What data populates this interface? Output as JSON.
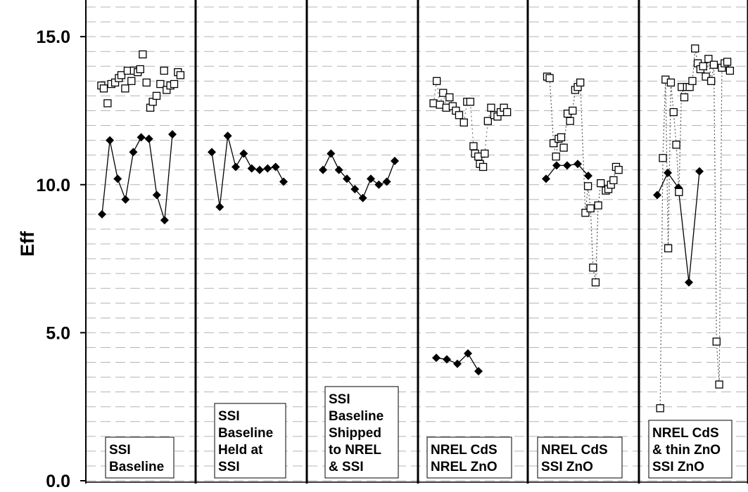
{
  "chart_data": {
    "type": "scatter",
    "ylabel": "Eff",
    "ylim": [
      0,
      16
    ],
    "yticks": [
      {
        "value": 0,
        "label": "0.0"
      },
      {
        "value": 5,
        "label": "5.0"
      },
      {
        "value": 10,
        "label": "10.0"
      },
      {
        "value": 15,
        "label": "15.0"
      }
    ],
    "minor_gridlines_step": 0.5,
    "grid": true,
    "colors": {
      "line": "#000000",
      "grid": "#b4b4b4",
      "open_marker": "#000000",
      "filled_marker": "#000000",
      "dotted_connector": "#555555"
    },
    "panels": [
      {
        "label_lines": [
          "SSI",
          "Baseline"
        ],
        "filled": [
          [
            1,
            9.0
          ],
          [
            2,
            11.5
          ],
          [
            3,
            10.2
          ],
          [
            4,
            9.5
          ],
          [
            5,
            11.1
          ],
          [
            6,
            11.6
          ],
          [
            7,
            11.55
          ],
          [
            8,
            9.65
          ],
          [
            9,
            8.8
          ],
          [
            10,
            11.7
          ]
        ],
        "open": [
          [
            0.5,
            13.35
          ],
          [
            0.7,
            13.25
          ],
          [
            1.0,
            12.75
          ],
          [
            1.3,
            13.4
          ],
          [
            1.6,
            13.45
          ],
          [
            1.9,
            13.6
          ],
          [
            2.1,
            13.7
          ],
          [
            2.4,
            13.25
          ],
          [
            2.6,
            13.85
          ],
          [
            2.9,
            13.5
          ],
          [
            3.1,
            13.85
          ],
          [
            3.4,
            13.8
          ],
          [
            3.6,
            13.9
          ],
          [
            3.8,
            14.4
          ],
          [
            4.1,
            13.45
          ],
          [
            4.4,
            12.6
          ],
          [
            4.6,
            12.8
          ],
          [
            4.9,
            13.0
          ],
          [
            5.2,
            13.4
          ],
          [
            5.5,
            13.85
          ],
          [
            5.7,
            13.2
          ],
          [
            6.0,
            13.35
          ],
          [
            6.3,
            13.4
          ],
          [
            6.6,
            13.8
          ],
          [
            6.8,
            13.7
          ]
        ],
        "open_x_range": [
          0,
          7
        ]
      },
      {
        "label_lines": [
          "SSI",
          "Baseline",
          "Held at",
          "SSI"
        ],
        "filled": [
          [
            1,
            11.1
          ],
          [
            2,
            9.25
          ],
          [
            3,
            11.65
          ],
          [
            4,
            10.6
          ],
          [
            5,
            11.05
          ],
          [
            6,
            10.55
          ],
          [
            7,
            10.5
          ],
          [
            8,
            10.55
          ],
          [
            9,
            10.6
          ],
          [
            10,
            10.1
          ]
        ],
        "open": []
      },
      {
        "label_lines": [
          "SSI",
          "Baseline",
          "Shipped",
          "to NREL",
          "& SSI"
        ],
        "filled": [
          [
            1,
            10.5
          ],
          [
            2,
            11.05
          ],
          [
            3,
            10.5
          ],
          [
            4,
            10.2
          ],
          [
            5,
            9.85
          ],
          [
            6,
            9.55
          ],
          [
            7,
            10.2
          ],
          [
            8,
            10.0
          ],
          [
            9,
            10.1
          ],
          [
            10,
            10.8
          ]
        ],
        "open": []
      },
      {
        "label_lines": [
          "NREL CdS",
          "NREL ZnO"
        ],
        "filled": [
          [
            1,
            4.15
          ],
          [
            2,
            4.1
          ],
          [
            3,
            3.95
          ],
          [
            4,
            4.3
          ],
          [
            5,
            3.7
          ]
        ],
        "open": [
          [
            0.4,
            12.75
          ],
          [
            0.6,
            13.5
          ],
          [
            0.8,
            12.7
          ],
          [
            1.0,
            13.1
          ],
          [
            1.2,
            12.6
          ],
          [
            1.4,
            12.95
          ],
          [
            1.6,
            12.65
          ],
          [
            1.8,
            12.5
          ],
          [
            2.0,
            12.35
          ],
          [
            2.3,
            12.1
          ],
          [
            2.5,
            12.8
          ],
          [
            2.7,
            12.8
          ],
          [
            2.9,
            11.3
          ],
          [
            3.0,
            11.05
          ],
          [
            3.2,
            10.95
          ],
          [
            3.3,
            10.7
          ],
          [
            3.5,
            10.6
          ],
          [
            3.6,
            11.05
          ],
          [
            3.8,
            12.15
          ],
          [
            4.0,
            12.6
          ],
          [
            4.2,
            12.35
          ],
          [
            4.4,
            12.3
          ],
          [
            4.6,
            12.45
          ],
          [
            4.8,
            12.6
          ],
          [
            5.0,
            12.45
          ]
        ],
        "open_x_range": [
          0,
          5.5
        ]
      },
      {
        "label_lines": [
          "NREL CdS",
          "SSI ZnO"
        ],
        "filled": [
          [
            1,
            10.2
          ],
          [
            2,
            10.65
          ],
          [
            3,
            10.65
          ],
          [
            4,
            10.7
          ],
          [
            5,
            10.3
          ]
        ],
        "open": [
          [
            0.8,
            13.65
          ],
          [
            1.0,
            13.6
          ],
          [
            1.3,
            11.4
          ],
          [
            1.5,
            10.95
          ],
          [
            1.7,
            11.55
          ],
          [
            1.9,
            11.6
          ],
          [
            2.1,
            11.25
          ],
          [
            2.4,
            12.4
          ],
          [
            2.6,
            12.15
          ],
          [
            2.8,
            12.5
          ],
          [
            3.0,
            13.2
          ],
          [
            3.2,
            13.3
          ],
          [
            3.4,
            13.45
          ],
          [
            3.8,
            9.05
          ],
          [
            4.0,
            9.95
          ],
          [
            4.2,
            9.2
          ],
          [
            4.4,
            7.2
          ],
          [
            4.6,
            6.7
          ],
          [
            4.8,
            9.3
          ],
          [
            5.0,
            10.05
          ],
          [
            5.4,
            9.8
          ],
          [
            5.6,
            9.85
          ],
          [
            5.8,
            10.0
          ],
          [
            6.0,
            10.15
          ],
          [
            6.2,
            10.6
          ],
          [
            6.4,
            10.5
          ]
        ],
        "open_x_range": [
          0,
          7
        ]
      },
      {
        "label_lines": [
          "NREL CdS",
          "& thin ZnO",
          "SSI ZnO"
        ],
        "filled": [
          [
            1,
            9.65
          ],
          [
            2,
            10.4
          ],
          [
            3,
            9.9
          ],
          [
            4,
            6.7
          ],
          [
            5,
            10.45
          ]
        ],
        "open": [
          [
            0.9,
            2.45
          ],
          [
            1.1,
            10.9
          ],
          [
            1.3,
            13.55
          ],
          [
            1.5,
            7.85
          ],
          [
            1.7,
            13.45
          ],
          [
            1.9,
            12.45
          ],
          [
            2.1,
            11.35
          ],
          [
            2.3,
            9.75
          ],
          [
            2.5,
            13.3
          ],
          [
            2.7,
            12.95
          ],
          [
            2.9,
            13.3
          ],
          [
            3.1,
            13.3
          ],
          [
            3.3,
            13.5
          ],
          [
            3.5,
            14.6
          ],
          [
            3.7,
            14.1
          ],
          [
            3.9,
            13.9
          ],
          [
            4.1,
            14.0
          ],
          [
            4.3,
            13.65
          ],
          [
            4.5,
            14.25
          ],
          [
            4.7,
            13.5
          ],
          [
            4.9,
            14.05
          ],
          [
            5.1,
            4.7
          ],
          [
            5.3,
            3.25
          ],
          [
            5.5,
            13.95
          ],
          [
            5.7,
            14.1
          ],
          [
            5.9,
            14.15
          ],
          [
            6.1,
            13.85
          ]
        ],
        "open_x_range": [
          0,
          6.5
        ]
      }
    ]
  }
}
